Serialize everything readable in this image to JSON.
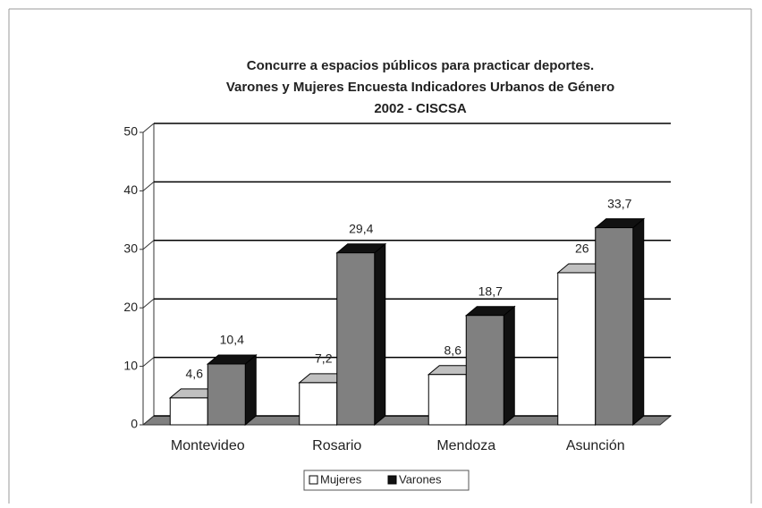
{
  "chart_data": {
    "type": "bar3d",
    "title": [
      "Concurre a espacios públicos para practicar deportes.",
      "Varones y Mujeres Encuesta Indicadores Urbanos de Género",
      "2002 - CISCSA"
    ],
    "categories": [
      "Montevideo",
      "Rosario",
      "Mendoza",
      "Asunción"
    ],
    "series": [
      {
        "name": "Mujeres",
        "color": "#ffffff",
        "values": [
          4.6,
          7.2,
          8.6,
          26
        ],
        "value_labels": [
          "4,6",
          "7,2",
          "8,6",
          "26"
        ]
      },
      {
        "name": "Varones",
        "color": "#808080",
        "values": [
          10.4,
          29.4,
          18.7,
          33.7
        ],
        "value_labels": [
          "10,4",
          "29,4",
          "18,7",
          "33,7"
        ]
      }
    ],
    "ylim": [
      0,
      50
    ],
    "yticks": [
      0,
      10,
      20,
      30,
      40,
      50
    ],
    "grid": true,
    "legend": "bottom"
  }
}
